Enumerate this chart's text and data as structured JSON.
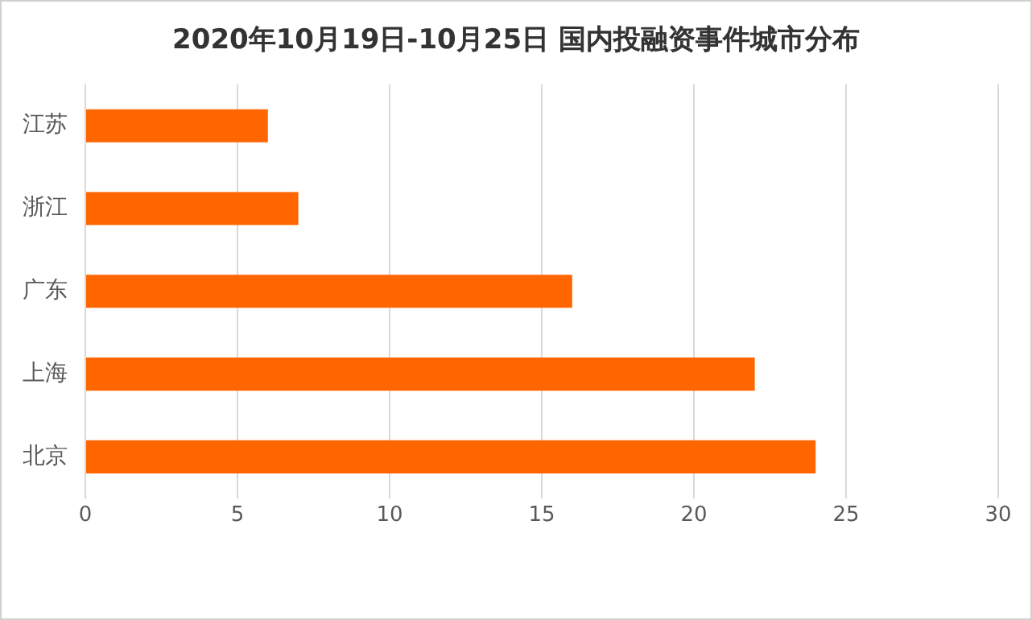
{
  "chart_data": {
    "type": "bar",
    "orientation": "horizontal",
    "title": "2020年10月19日-10月25日 国内投融资事件城市分布",
    "categories": [
      "江苏",
      "浙江",
      "广东",
      "上海",
      "北京"
    ],
    "values": [
      6,
      7,
      16,
      22,
      24
    ],
    "color": "#ff6600",
    "xlim": [
      0,
      30
    ],
    "xticks": [
      0,
      5,
      10,
      15,
      20,
      25,
      30
    ],
    "grid": "x",
    "legend": false
  }
}
